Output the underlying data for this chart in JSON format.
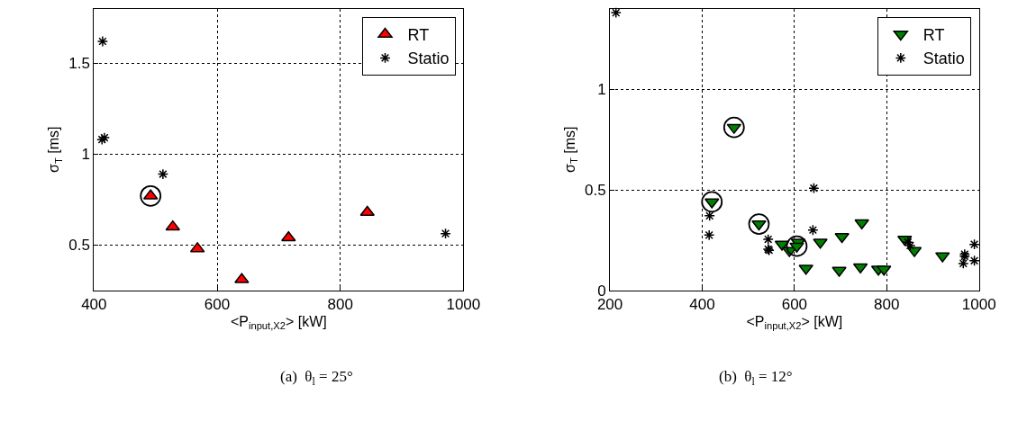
{
  "chart_data": [
    {
      "type": "scatter",
      "xlabel": "<P$_{input,X2}$> [kW]",
      "ylabel": "σ$_{T}$ [ms]",
      "xlim": [
        400,
        1000
      ],
      "xticks": [
        400,
        600,
        800,
        1000
      ],
      "ylim": [
        0.25,
        1.8
      ],
      "yticks": [
        0.5,
        1,
        1.5
      ],
      "grid": true,
      "legend": "top right",
      "annotations": [
        "(a)  θ$_{l}$ = 25°"
      ],
      "series": [
        {
          "name": "RT",
          "color": "#ff0000",
          "marker": "triangle",
          "x": [
            492,
            528,
            568,
            640,
            716,
            844
          ],
          "values": [
            0.77,
            0.6,
            0.48,
            0.31,
            0.54,
            0.68
          ]
        },
        {
          "name": "Statio",
          "color": "#000000",
          "marker": "cross",
          "x": [
            414,
            413,
            417,
            512,
            971
          ],
          "values": [
            1.62,
            1.08,
            1.09,
            0.89,
            0.563
          ]
        },
        {
          "color": "#000000",
          "marker": "circle",
          "x": [
            492
          ],
          "values": [
            0.77
          ]
        }
      ]
    },
    {
      "type": "scatter",
      "xlabel": "<P$_{input,X2}$> [kW]",
      "ylabel": "σ$_{T}$ [ms]",
      "xlim": [
        200,
        1000
      ],
      "xticks": [
        200,
        400,
        600,
        800,
        1000
      ],
      "ylim": [
        0,
        1.4
      ],
      "yticks": [
        0,
        0.5,
        1
      ],
      "grid": true,
      "legend": "top right",
      "annotations": [
        "(b)  θ$_{l}$ = 12°"
      ],
      "series": [
        {
          "name": "RT",
          "color": "#008000",
          "marker": "triangle-down",
          "x": [
            469,
            421,
            523,
            573,
            589,
            608,
            605,
            625,
            656,
            703,
            697,
            743,
            746,
            782,
            794,
            839,
            860,
            921
          ],
          "values": [
            0.81,
            0.44,
            0.33,
            0.23,
            0.198,
            0.24,
            0.22,
            0.11,
            0.24,
            0.268,
            0.1,
            0.117,
            0.336,
            0.106,
            0.106,
            0.254,
            0.198,
            0.172
          ]
        },
        {
          "name": "Statio",
          "color": "#000000",
          "marker": "cross",
          "x": [
            213,
            416,
            415,
            543,
            543,
            545,
            642,
            640,
            846,
            851,
            969,
            966,
            969,
            990,
            990
          ],
          "values": [
            1.38,
            0.371,
            0.275,
            0.254,
            0.205,
            0.2,
            0.508,
            0.3,
            0.24,
            0.223,
            0.17,
            0.134,
            0.18,
            0.229,
            0.148
          ]
        },
        {
          "color": "#000000",
          "marker": "circle",
          "x": [
            469,
            421,
            523,
            605
          ],
          "values": [
            0.81,
            0.44,
            0.33,
            0.22
          ]
        }
      ]
    }
  ]
}
